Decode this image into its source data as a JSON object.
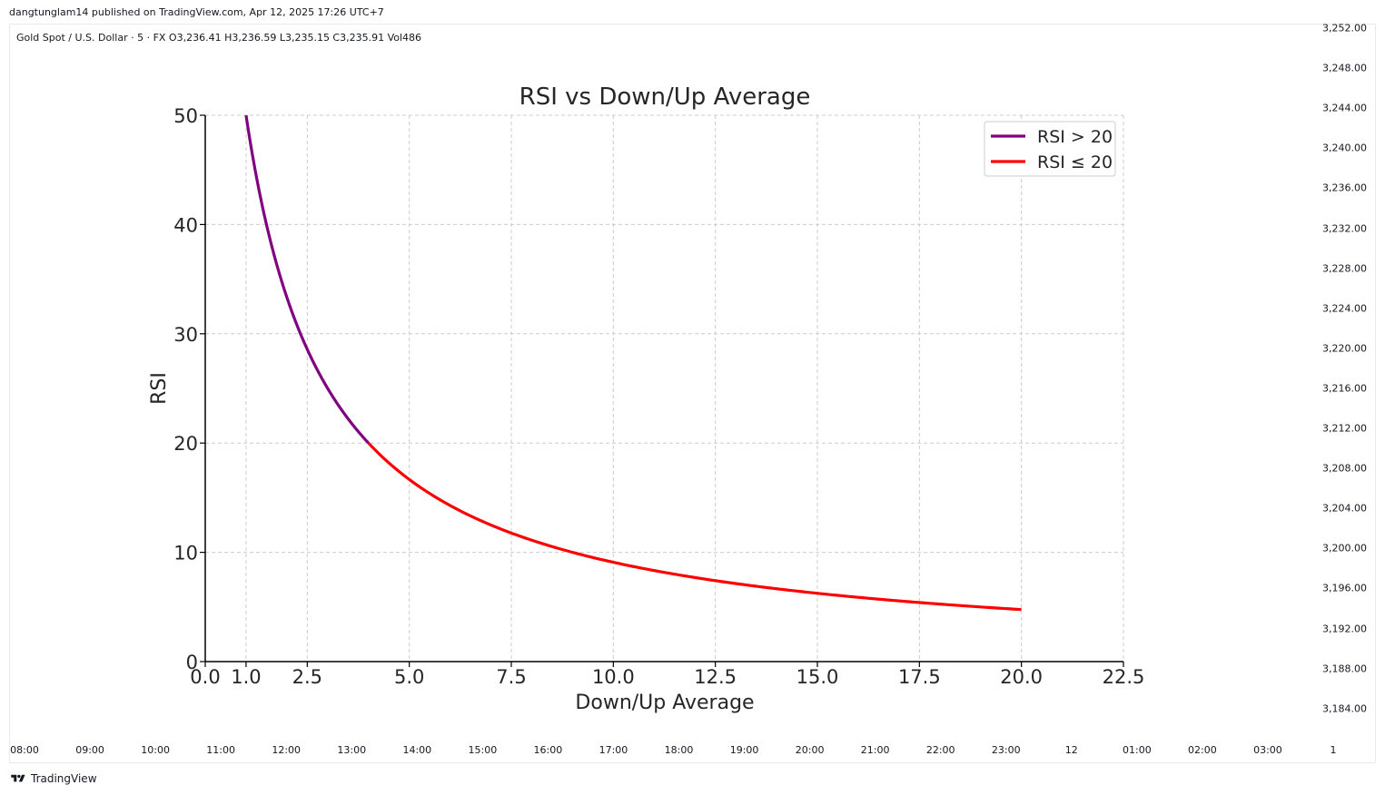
{
  "publish_line": "dangtunglam14 published on TradingView.com, Apr 12, 2025 17:26 UTC+7",
  "symbol_line": "Gold Spot / U.S. Dollar · 5 · FX  O3,236.41  H3,236.59  L3,235.15  C3,235.91  Vol486",
  "price_axis": [
    "3,252.00",
    "3,248.00",
    "3,244.00",
    "3,240.00",
    "3,236.00",
    "3,232.00",
    "3,228.00",
    "3,224.00",
    "3,220.00",
    "3,216.00",
    "3,212.00",
    "3,208.00",
    "3,204.00",
    "3,200.00",
    "3,196.00",
    "3,192.00",
    "3,188.00",
    "3,184.00"
  ],
  "time_axis": [
    "08:00",
    "09:00",
    "10:00",
    "11:00",
    "12:00",
    "13:00",
    "14:00",
    "15:00",
    "16:00",
    "17:00",
    "18:00",
    "19:00",
    "20:00",
    "21:00",
    "22:00",
    "23:00",
    "12",
    "01:00",
    "02:00",
    "03:00",
    "1"
  ],
  "brand": "TradingView",
  "colors": {
    "rsi_above": "#800080",
    "rsi_below": "#ff0000",
    "grid": "#cccccc"
  },
  "chart_data": {
    "type": "line",
    "title": "RSI vs Down/Up Average",
    "xlabel": "Down/Up Average",
    "ylabel": "RSI",
    "xlim": [
      0,
      22.5
    ],
    "ylim": [
      0,
      50
    ],
    "x_ticks": [
      "0.0",
      "1.0",
      "2.5",
      "5.0",
      "7.5",
      "10.0",
      "12.5",
      "15.0",
      "17.5",
      "20.0",
      "22.5"
    ],
    "x_tick_values": [
      0,
      1,
      2.5,
      5,
      7.5,
      10,
      12.5,
      15,
      17.5,
      20,
      22.5
    ],
    "y_ticks": [
      "0",
      "10",
      "20",
      "30",
      "40",
      "50"
    ],
    "y_tick_values": [
      0,
      10,
      20,
      30,
      40,
      50
    ],
    "grid": true,
    "legend_position": "top-right",
    "series": [
      {
        "name": "RSI > 20",
        "color": "#800080",
        "x": [
          1.0,
          1.25,
          1.5,
          1.75,
          2.0,
          2.25,
          2.5,
          2.75,
          3.0,
          3.25,
          3.5,
          3.75,
          4.0
        ],
        "y": [
          50.0,
          44.4,
          40.0,
          36.4,
          33.3,
          30.8,
          28.6,
          26.7,
          25.0,
          23.5,
          22.2,
          21.1,
          20.0
        ]
      },
      {
        "name": "RSI ≤ 20",
        "color": "#ff0000",
        "x": [
          4.0,
          4.5,
          5.0,
          5.5,
          6.0,
          7.0,
          8.0,
          9.0,
          10.0,
          11.0,
          12.0,
          13.0,
          14.0,
          15.0,
          16.0,
          17.0,
          18.0,
          19.0,
          20.0
        ],
        "y": [
          20.0,
          18.2,
          16.7,
          15.4,
          14.3,
          12.5,
          11.1,
          10.0,
          9.1,
          8.3,
          7.7,
          7.1,
          6.7,
          6.2,
          5.9,
          5.6,
          5.3,
          5.0,
          4.8
        ]
      }
    ]
  }
}
